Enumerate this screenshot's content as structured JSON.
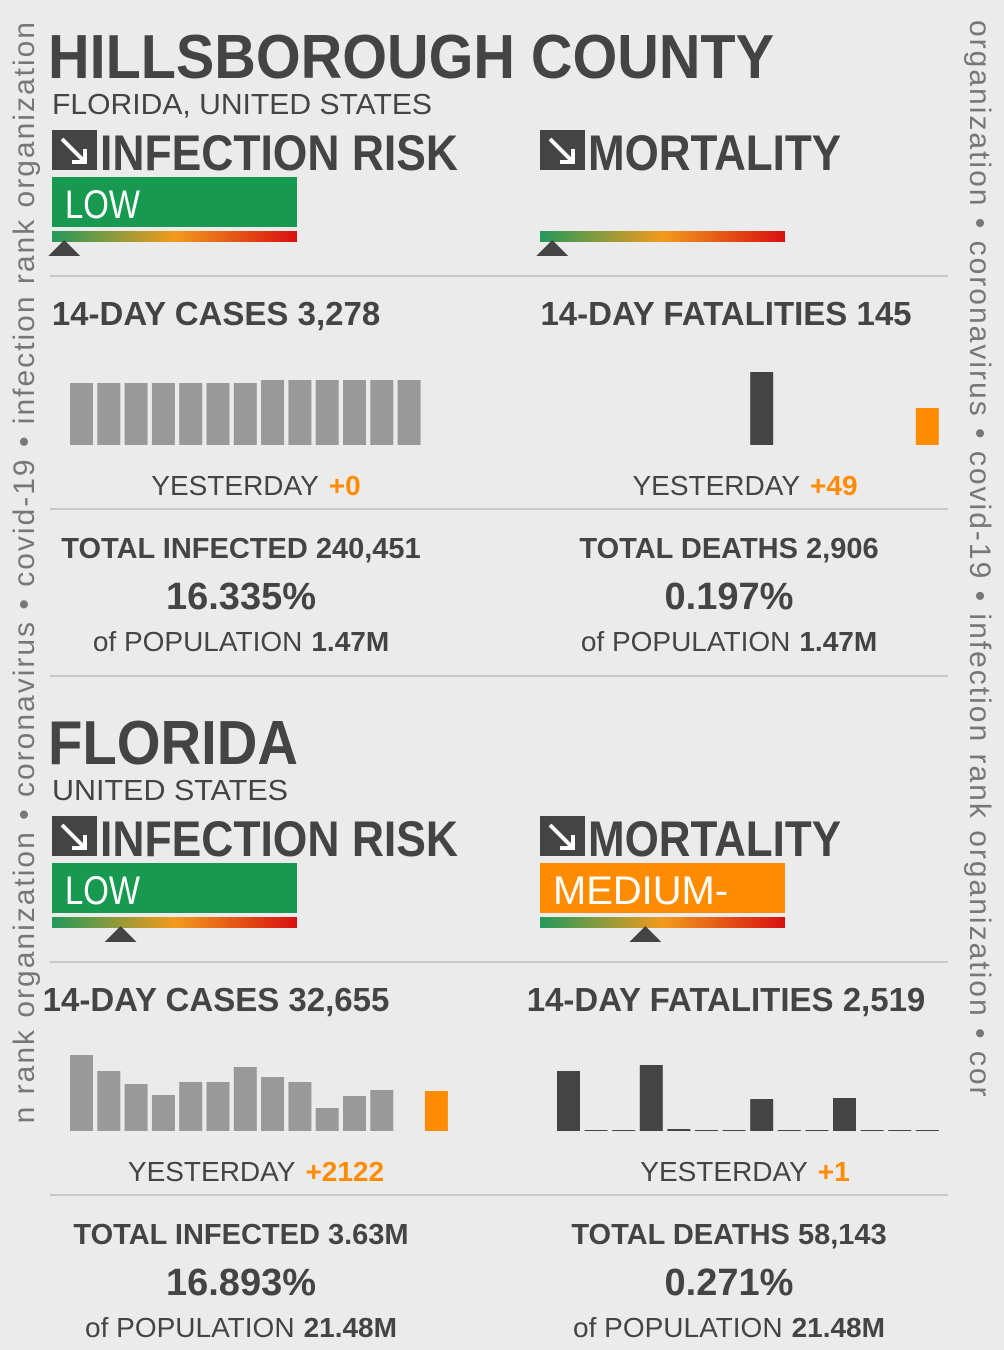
{
  "side_text": {
    "left": "n rank organization • coronavirus • covid-19 • infection rank organization",
    "right": "organization • coronavirus • covid-19 • infection rank organization • cor"
  },
  "sections": [
    {
      "title": "HILLSBOROUGH COUNTY",
      "subtitle": "FLORIDA, UNITED STATES",
      "infection": {
        "heading": "INFECTION RISK",
        "level": "LOW",
        "marker": 5
      },
      "mortality": {
        "heading": "MORTALITY",
        "marker": 5
      },
      "cases": {
        "label": "14-DAY CASES 3,278",
        "bars": [
          62,
          62,
          62,
          62,
          62,
          62,
          62,
          65,
          65,
          65,
          65,
          65,
          65
        ],
        "colors": [
          "#999999",
          "#999999",
          "#999999",
          "#999999",
          "#999999",
          "#999999",
          "#999999",
          "#999999",
          "#999999",
          "#999999",
          "#999999",
          "#999999",
          "#999999"
        ],
        "yesterday_label": "YESTERDAY",
        "yesterday_value": "+0",
        "total": "TOTAL INFECTED 240,451",
        "percent": "16.335%",
        "population_label": "of POPULATION",
        "population": "1.47M"
      },
      "fatalities": {
        "label": "14-DAY FATALITIES 145",
        "bars": [
          0,
          0,
          0,
          0,
          0,
          0,
          0,
          73,
          0,
          0,
          0,
          0,
          0,
          37
        ],
        "colors": [
          "#444444",
          "#444444",
          "#444444",
          "#444444",
          "#444444",
          "#444444",
          "#444444",
          "#444444",
          "#444444",
          "#444444",
          "#444444",
          "#444444",
          "#444444",
          "#ff8c00"
        ],
        "yesterday_label": "YESTERDAY",
        "yesterday_value": "+49",
        "total": "TOTAL DEATHS 2,906",
        "percent": "0.197%",
        "population_label": "of POPULATION",
        "population": "1.47M"
      }
    },
    {
      "title": "FLORIDA",
      "subtitle": "UNITED STATES",
      "infection": {
        "heading": "INFECTION RISK",
        "level": "LOW",
        "marker": 28
      },
      "mortality": {
        "heading": "MORTALITY",
        "level": "MEDIUM-",
        "marker": 43
      },
      "cases": {
        "label": "14-DAY CASES 32,655",
        "bars": [
          76,
          60,
          47,
          36,
          49,
          49,
          64,
          54,
          49,
          23,
          35,
          41,
          null,
          40
        ],
        "colors": [
          "#999999",
          "#999999",
          "#999999",
          "#999999",
          "#999999",
          "#999999",
          "#999999",
          "#999999",
          "#999999",
          "#999999",
          "#999999",
          "#999999",
          "#999999",
          "#ff8c00"
        ],
        "yesterday_label": "YESTERDAY",
        "yesterday_value": "+2122",
        "total": "TOTAL INFECTED 3.63M",
        "percent": "16.893%",
        "population_label": "of POPULATION",
        "population": "21.48M"
      },
      "fatalities": {
        "label": "14-DAY FATALITIES 2,519",
        "bars": [
          60,
          1,
          1,
          66,
          2,
          1,
          1,
          32,
          1,
          1,
          33,
          1,
          1,
          1
        ],
        "colors": [
          "#444444",
          "#444444",
          "#444444",
          "#444444",
          "#444444",
          "#444444",
          "#444444",
          "#444444",
          "#444444",
          "#444444",
          "#444444",
          "#444444",
          "#444444",
          "#444444"
        ],
        "yesterday_label": "YESTERDAY",
        "yesterday_value": "+1",
        "total": "TOTAL DEATHS 58,143",
        "percent": "0.271%",
        "population_label": "of POPULATION",
        "population": "21.48M"
      }
    }
  ]
}
